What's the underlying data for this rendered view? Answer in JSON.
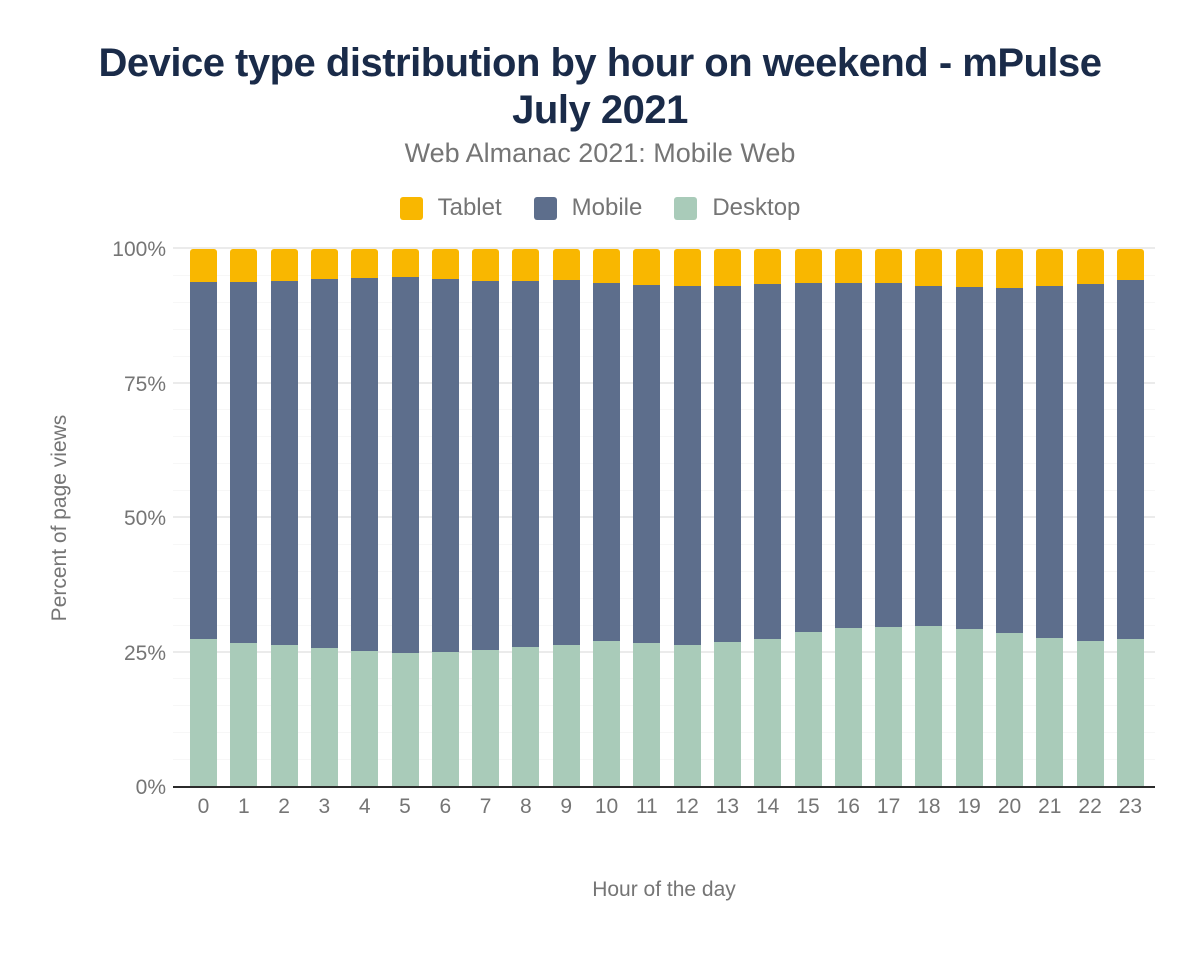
{
  "header": {
    "title": "Device type distribution by hour on weekend - mPulse July 2021",
    "subtitle": "Web Almanac 2021: Mobile Web"
  },
  "legend": {
    "items": [
      {
        "label": "Tablet",
        "color": "#f9b700"
      },
      {
        "label": "Mobile",
        "color": "#5d6e8c"
      },
      {
        "label": "Desktop",
        "color": "#a9cbb9"
      }
    ]
  },
  "chart_data": {
    "type": "bar",
    "stacked": true,
    "title": "Device type distribution by hour on weekend - mPulse July 2021",
    "subtitle": "Web Almanac 2021: Mobile Web",
    "xlabel": "Hour of the day",
    "ylabel": "Percent of page views",
    "categories": [
      "0",
      "1",
      "2",
      "3",
      "4",
      "5",
      "6",
      "7",
      "8",
      "9",
      "10",
      "11",
      "12",
      "13",
      "14",
      "15",
      "16",
      "17",
      "18",
      "19",
      "20",
      "21",
      "22",
      "23"
    ],
    "series": [
      {
        "name": "Tablet",
        "color": "#f9b700",
        "values": [
          6.1,
          6.2,
          6.0,
          5.6,
          5.3,
          5.2,
          5.6,
          6.0,
          6.0,
          5.8,
          6.3,
          6.7,
          6.8,
          6.8,
          6.5,
          6.3,
          6.3,
          6.3,
          6.8,
          7.1,
          7.3,
          6.9,
          6.5,
          5.8
        ]
      },
      {
        "name": "Mobile",
        "color": "#5d6e8c",
        "values": [
          66.4,
          67.1,
          67.7,
          68.6,
          69.5,
          69.9,
          69.4,
          68.5,
          67.9,
          67.8,
          66.5,
          66.5,
          66.8,
          66.2,
          65.9,
          64.8,
          64.1,
          63.9,
          63.3,
          63.6,
          64.1,
          65.5,
          66.3,
          66.7
        ]
      },
      {
        "name": "Desktop",
        "color": "#a9cbb9",
        "values": [
          27.5,
          26.7,
          26.3,
          25.8,
          25.2,
          24.9,
          25.0,
          25.5,
          26.1,
          26.4,
          27.2,
          26.8,
          26.4,
          27.0,
          27.6,
          28.9,
          29.6,
          29.8,
          29.9,
          29.3,
          28.6,
          27.6,
          27.2,
          27.5
        ]
      }
    ],
    "y_ticks": [
      "0%",
      "25%",
      "50%",
      "75%",
      "100%"
    ],
    "ylim": [
      0,
      100
    ],
    "grid": "major gridlines every 25%, faint minor gridlines every 5%",
    "legend_position": "top"
  }
}
